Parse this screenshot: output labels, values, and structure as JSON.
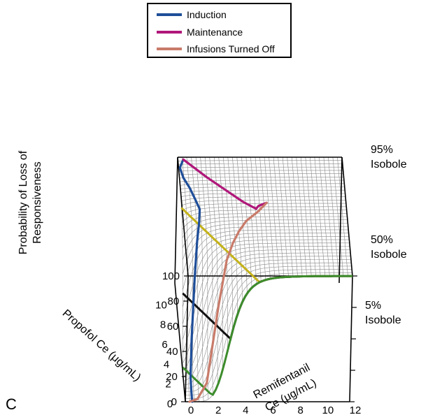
{
  "panel_label": "C",
  "chart_data": {
    "type": "surface3d",
    "legend_position": "top-center",
    "legend": [
      {
        "label": "Induction",
        "color": "#1f4e99"
      },
      {
        "label": "Maintenance",
        "color": "#b0177a"
      },
      {
        "label": "Infusions Turned Off",
        "color": "#c97b6a"
      }
    ],
    "zlabel_lines": [
      "Probability of Loss of",
      "Responsiveness"
    ],
    "xlabel_lines": [
      "Remifentanil",
      "Ce (μg/mL)"
    ],
    "ylabel": "Propofol Ce (μg/mL)",
    "x_ticks": [
      "0",
      "2",
      "4",
      "6",
      "8",
      "10",
      "12"
    ],
    "y_ticks": [
      "0",
      "2",
      "4",
      "6",
      "8",
      "10"
    ],
    "z_ticks": [
      "0",
      "20",
      "40",
      "60",
      "80",
      "100"
    ],
    "xlim": [
      0,
      12
    ],
    "ylim": [
      0,
      12
    ],
    "zlim": [
      0,
      100
    ],
    "isoboles": [
      {
        "label_lines": [
          "95%",
          "Isobole"
        ],
        "probability": 95,
        "color": "#c4b21a"
      },
      {
        "label_lines": [
          "50%",
          "Isobole"
        ],
        "probability": 50,
        "color": "#111111"
      },
      {
        "label_lines": [
          "5%",
          "Isobole"
        ],
        "probability": 5,
        "color": "#3d8c2c"
      }
    ],
    "trajectories": [
      {
        "name": "Induction",
        "color": "#1f4e99",
        "points": [
          [
            0.5,
            0.0
          ],
          [
            0.5,
            1.0
          ],
          [
            0.5,
            2.0
          ],
          [
            0.6,
            3.0
          ],
          [
            0.8,
            4.0
          ],
          [
            1.0,
            5.0
          ],
          [
            1.2,
            6.0
          ],
          [
            1.3,
            7.0
          ],
          [
            1.0,
            8.0
          ],
          [
            0.7,
            9.0
          ],
          [
            0.3,
            10.0
          ],
          [
            0.1,
            11.0
          ],
          [
            0.4,
            11.8
          ]
        ]
      },
      {
        "name": "Maintenance",
        "color": "#b0177a",
        "points": [
          [
            0.4,
            11.8
          ],
          [
            2.0,
            10.0
          ],
          [
            3.5,
            8.5
          ],
          [
            4.5,
            7.5
          ],
          [
            5.4,
            6.8
          ],
          [
            5.6,
            7.1
          ],
          [
            6.2,
            7.4
          ]
        ]
      },
      {
        "name": "Infusions Turned Off",
        "color": "#c97b6a",
        "points": [
          [
            6.2,
            7.4
          ],
          [
            5.5,
            6.5
          ],
          [
            4.6,
            5.6
          ],
          [
            4.0,
            4.6
          ],
          [
            3.5,
            3.6
          ],
          [
            3.0,
            2.6
          ],
          [
            2.4,
            1.6
          ],
          [
            1.6,
            0.8
          ],
          [
            0.9,
            0.25
          ],
          [
            0.3,
            0.0
          ]
        ]
      }
    ],
    "grid": true
  }
}
